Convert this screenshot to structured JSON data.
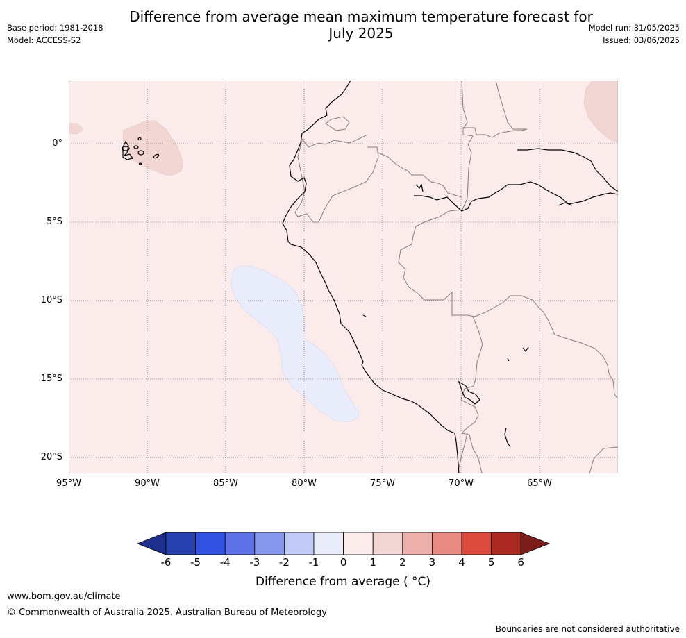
{
  "title_line1": "Difference from average mean maximum temperature forecast for",
  "title_line2": "July 2025",
  "base_period": "Base period: 1981-2018",
  "model": "Model: ACCESS-S2",
  "model_run": "Model run: 31/05/2025",
  "issued": "Issued: 03/06/2025",
  "map": {
    "lat_labels": [
      "0°",
      "5°S",
      "10°S",
      "15°S",
      "20°S"
    ],
    "lon_labels": [
      "95°W",
      "90°W",
      "85°W",
      "80°W",
      "75°W",
      "70°W",
      "65°W"
    ],
    "background_anomaly_color": "#fbebea",
    "warm_patch_color": "#f2d6d4",
    "cool_patch_color": "#e9ecfb"
  },
  "colorbar": {
    "ticks": [
      "-6",
      "-5",
      "-4",
      "-3",
      "-2",
      "-1",
      "0",
      "1",
      "2",
      "3",
      "4",
      "5",
      "6"
    ],
    "colors": [
      "#1f2f8e",
      "#283fae",
      "#3152e1",
      "#5d72e6",
      "#8797ec",
      "#c1c9f5",
      "#e9ecfb",
      "#fbebea",
      "#f2d6d4",
      "#ecafaa",
      "#e68a82",
      "#db4a3c",
      "#ac2a22",
      "#7d1d19"
    ],
    "label": "Difference from average ( °C)"
  },
  "footer": {
    "url": "www.bom.gov.au/climate",
    "copyright": "© Commonwealth of Australia 2025, Australian Bureau of Meteorology",
    "note": "Boundaries are not considered authoritative"
  }
}
